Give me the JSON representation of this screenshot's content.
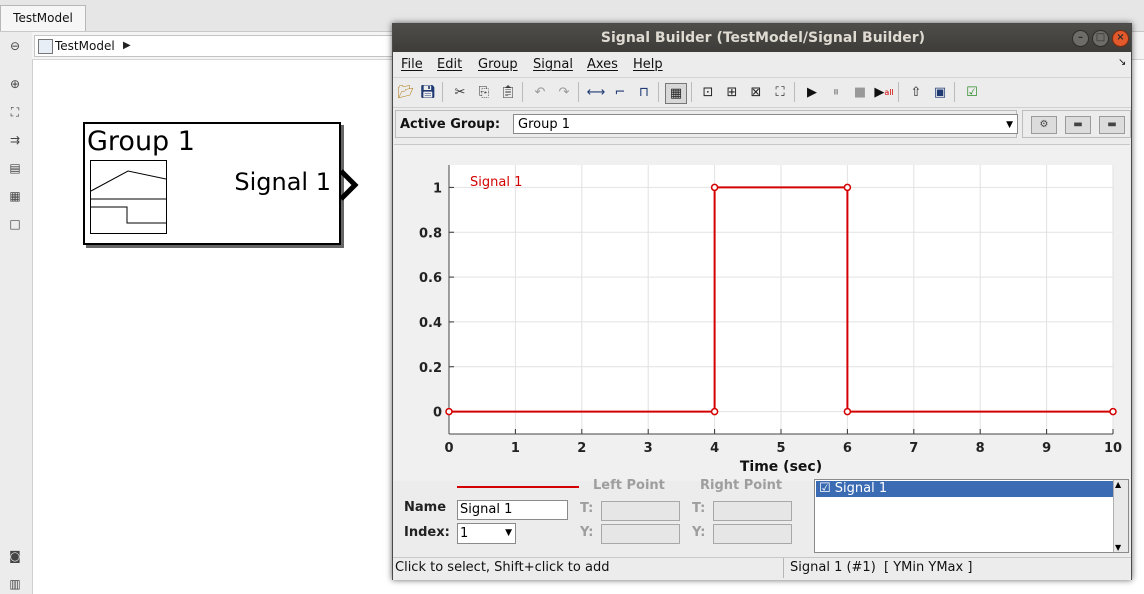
{
  "model": {
    "tab_label": "TestModel",
    "breadcrumb": "TestModel",
    "block": {
      "title": "Group 1",
      "output_label": "Signal 1"
    }
  },
  "window": {
    "title": "Signal Builder (TestModel/Signal Builder)",
    "menus": [
      "File",
      "Edit",
      "Group",
      "Signal",
      "Axes",
      "Help"
    ]
  },
  "group_bar": {
    "label": "Active Group:",
    "selected": "Group 1"
  },
  "chart_data": {
    "type": "line",
    "series": [
      {
        "name": "Signal 1",
        "color": "#d40000",
        "x": [
          0,
          4,
          4,
          6,
          6,
          10
        ],
        "y": [
          0,
          0,
          1,
          1,
          0,
          0
        ]
      }
    ],
    "xlabel": "Time (sec)",
    "ylabel": "",
    "xlim": [
      0,
      10
    ],
    "ylim": [
      -0.1,
      1.1
    ],
    "xticks": [
      0,
      1,
      2,
      3,
      4,
      5,
      6,
      7,
      8,
      9,
      10
    ],
    "yticks": [
      0,
      0.2,
      0.4,
      0.6,
      0.8,
      1
    ],
    "ytick_labels": [
      "0",
      "0.2",
      "0.4",
      "0.6",
      "0.8",
      "1"
    ],
    "grid": true,
    "legend": "top-left"
  },
  "editor": {
    "name_label": "Name",
    "name_value": "Signal 1",
    "index_label": "Index:",
    "index_value": "1",
    "left_point_label": "Left Point",
    "right_point_label": "Right Point",
    "t_label": "T:",
    "y_label": "Y:",
    "signal_list": [
      "Signal 1"
    ]
  },
  "status": {
    "hint": "Click to select, Shift+click to add",
    "selection": "Signal 1 (#1)  [ YMin YMax ]"
  }
}
